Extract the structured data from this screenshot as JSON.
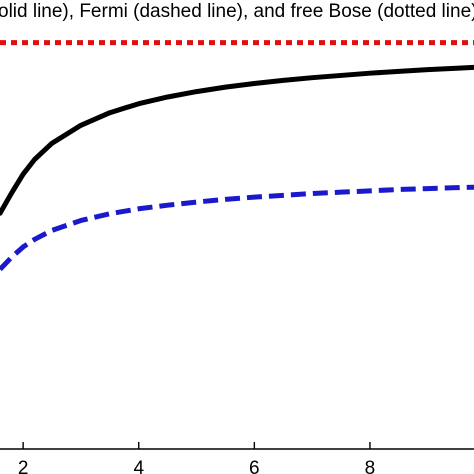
{
  "chart_data": {
    "type": "line",
    "title": "olid line), Fermi (dashed line), and free Bose (dotted line)",
    "xlabel": "",
    "ylabel": "",
    "xlim": [
      1.6,
      9.8
    ],
    "ylim": [
      0,
      1
    ],
    "grid": false,
    "x_ticks": [
      2,
      4,
      6,
      8
    ],
    "x_tick_labels": [
      "2",
      "4",
      "6",
      "8"
    ],
    "series": [
      {
        "style": "solid",
        "color": "#000000",
        "x": [
          1.6,
          1.8,
          2.0,
          2.2,
          2.5,
          3.0,
          3.5,
          4.0,
          4.5,
          5.0,
          5.5,
          6.0,
          6.5,
          7.0,
          7.5,
          8.0,
          8.5,
          9.0,
          9.5,
          9.8
        ],
        "y": [
          0.525,
          0.57,
          0.612,
          0.645,
          0.681,
          0.721,
          0.749,
          0.769,
          0.784,
          0.796,
          0.806,
          0.814,
          0.821,
          0.827,
          0.832,
          0.837,
          0.841,
          0.845,
          0.848,
          0.85
        ]
      },
      {
        "style": "dashed",
        "color": "#1a1acc",
        "x": [
          1.6,
          1.8,
          2.0,
          2.2,
          2.5,
          3.0,
          3.5,
          4.0,
          4.5,
          5.0,
          5.5,
          6.0,
          6.5,
          7.0,
          7.5,
          8.0,
          8.5,
          9.0,
          9.5,
          9.8
        ],
        "y": [
          0.4,
          0.427,
          0.45,
          0.467,
          0.487,
          0.509,
          0.524,
          0.535,
          0.543,
          0.55,
          0.556,
          0.561,
          0.565,
          0.569,
          0.572,
          0.575,
          0.578,
          0.58,
          0.582,
          0.583
        ]
      },
      {
        "style": "dotted",
        "color": "#e01010",
        "x": [
          1.6,
          9.8
        ],
        "y": [
          0.905,
          0.905
        ]
      }
    ]
  }
}
